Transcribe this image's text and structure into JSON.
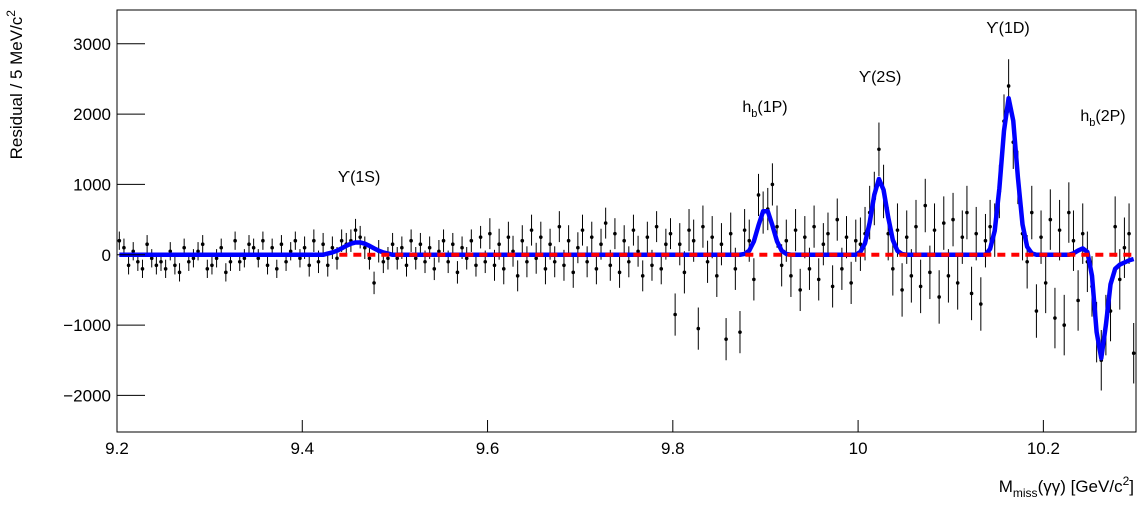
{
  "chart_data": {
    "type": "scatter",
    "x": [
      9.2025,
      9.2075,
      9.2125,
      9.2175,
      9.2225,
      9.2275,
      9.2325,
      9.2375,
      9.2425,
      9.2475,
      9.2525,
      9.2575,
      9.2625,
      9.2675,
      9.2725,
      9.2775,
      9.2825,
      9.2875,
      9.2925,
      9.2975,
      9.3025,
      9.3075,
      9.3125,
      9.3175,
      9.3225,
      9.3275,
      9.3325,
      9.3375,
      9.3425,
      9.3475,
      9.3525,
      9.3575,
      9.3625,
      9.3675,
      9.3725,
      9.3775,
      9.3825,
      9.3875,
      9.3925,
      9.3975,
      9.4025,
      9.4075,
      9.4125,
      9.4175,
      9.4225,
      9.4275,
      9.4325,
      9.4375,
      9.4425,
      9.4475,
      9.4525,
      9.4575,
      9.4625,
      9.4675,
      9.4725,
      9.4775,
      9.4825,
      9.4875,
      9.4925,
      9.4975,
      9.5025,
      9.5075,
      9.5125,
      9.5175,
      9.5225,
      9.5275,
      9.5325,
      9.5375,
      9.5425,
      9.5475,
      9.5525,
      9.5575,
      9.5625,
      9.5675,
      9.5725,
      9.5775,
      9.5825,
      9.5875,
      9.5925,
      9.5975,
      9.6025,
      9.6075,
      9.6125,
      9.6175,
      9.6225,
      9.6275,
      9.6325,
      9.6375,
      9.6425,
      9.6475,
      9.6525,
      9.6575,
      9.6625,
      9.6675,
      9.6725,
      9.6775,
      9.6825,
      9.6875,
      9.6925,
      9.6975,
      9.7025,
      9.7075,
      9.7125,
      9.7175,
      9.7225,
      9.7275,
      9.7325,
      9.7375,
      9.7425,
      9.7475,
      9.7525,
      9.7575,
      9.7625,
      9.7675,
      9.7725,
      9.7775,
      9.7825,
      9.7875,
      9.7925,
      9.7975,
      9.8025,
      9.8075,
      9.8125,
      9.8175,
      9.8225,
      9.8275,
      9.8325,
      9.8375,
      9.8425,
      9.8475,
      9.8525,
      9.8575,
      9.8625,
      9.8675,
      9.8725,
      9.8775,
      9.8825,
      9.8875,
      9.8925,
      9.8975,
      9.9025,
      9.9075,
      9.9125,
      9.9175,
      9.9225,
      9.9275,
      9.9325,
      9.9375,
      9.9425,
      9.9475,
      9.9525,
      9.9575,
      9.9625,
      9.9675,
      9.9725,
      9.9775,
      9.9825,
      9.9875,
      9.9925,
      9.9975,
      10.0025,
      10.0075,
      10.0125,
      10.0175,
      10.0225,
      10.0275,
      10.0325,
      10.0375,
      10.0425,
      10.0475,
      10.0525,
      10.0575,
      10.0625,
      10.0675,
      10.0725,
      10.0775,
      10.0825,
      10.0875,
      10.0925,
      10.0975,
      10.1025,
      10.1075,
      10.1125,
      10.1175,
      10.1225,
      10.1275,
      10.1325,
      10.1375,
      10.1425,
      10.1475,
      10.1525,
      10.1575,
      10.1625,
      10.1675,
      10.1725,
      10.1775,
      10.1825,
      10.1875,
      10.1925,
      10.1975,
      10.2025,
      10.2075,
      10.2125,
      10.2175,
      10.2225,
      10.2275,
      10.2325,
      10.2375,
      10.2425,
      10.2475,
      10.2525,
      10.2575,
      10.2625,
      10.2675,
      10.2725,
      10.2775,
      10.2825,
      10.2875,
      10.2925,
      10.2975
    ],
    "series": [
      {
        "style": "points",
        "color": "#000000",
        "values": [
          200,
          100,
          -150,
          50,
          -100,
          -200,
          150,
          -50,
          -150,
          -100,
          -200,
          50,
          -150,
          -250,
          100,
          -100,
          -50,
          50,
          150,
          -200,
          -150,
          -50,
          100,
          -250,
          -100,
          200,
          -100,
          -50,
          150,
          100,
          -50,
          200,
          -150,
          100,
          -200,
          150,
          -100,
          50,
          200,
          -50,
          100,
          -150,
          200,
          -100,
          150,
          -150,
          100,
          -50,
          200,
          150,
          200,
          350,
          250,
          100,
          -50,
          -400,
          50,
          -100,
          -50,
          150,
          -50,
          100,
          -150,
          200,
          -50,
          150,
          -100,
          100,
          -200,
          50,
          200,
          -100,
          150,
          -250,
          100,
          -50,
          200,
          -150,
          250,
          -100,
          300,
          -150,
          150,
          -200,
          250,
          50,
          -300,
          200,
          -100,
          350,
          -50,
          250,
          -200,
          150,
          -100,
          400,
          -150,
          200,
          -250,
          100,
          350,
          -100,
          250,
          -200,
          150,
          450,
          -150,
          300,
          -250,
          200,
          -100,
          350,
          50,
          -300,
          250,
          -150,
          400,
          -200,
          150,
          300,
          -850,
          150,
          -250,
          350,
          200,
          -1050,
          400,
          -100,
          250,
          -300,
          150,
          -1200,
          300,
          -200,
          -1100,
          350,
          200,
          -350,
          850,
          600,
          650,
          1000,
          400,
          -150,
          200,
          -300,
          350,
          -500,
          250,
          -200,
          400,
          -350,
          150,
          300,
          -450,
          500,
          -200,
          250,
          -400,
          200,
          150,
          300,
          600,
          800,
          1500,
          900,
          300,
          -200,
          350,
          -500,
          250,
          -300,
          400,
          -450,
          700,
          -250,
          350,
          -600,
          450,
          -300,
          500,
          -400,
          250,
          600,
          -550,
          300,
          -700,
          200,
          400,
          350,
          900,
          1900,
          2400,
          1600,
          1100,
          300,
          -100,
          600,
          -800,
          250,
          -400,
          500,
          -900,
          350,
          -1000,
          600,
          200,
          -650,
          300,
          -100,
          -450,
          -1100,
          -1500,
          -1000,
          -800,
          400,
          -350,
          100,
          300,
          -1400
        ],
        "errors": [
          130,
          130,
          130,
          130,
          130,
          130,
          130,
          130,
          130,
          130,
          130,
          130,
          130,
          130,
          130,
          130,
          130,
          130,
          130,
          130,
          130,
          130,
          130,
          130,
          130,
          130,
          130,
          130,
          130,
          130,
          130,
          130,
          130,
          130,
          130,
          130,
          130,
          130,
          130,
          130,
          160,
          160,
          160,
          160,
          160,
          160,
          160,
          160,
          160,
          160,
          160,
          160,
          160,
          160,
          160,
          160,
          160,
          160,
          160,
          160,
          160,
          160,
          160,
          160,
          160,
          160,
          160,
          160,
          160,
          160,
          160,
          160,
          160,
          160,
          160,
          160,
          160,
          160,
          160,
          160,
          220,
          220,
          220,
          220,
          220,
          220,
          220,
          220,
          220,
          220,
          220,
          220,
          220,
          220,
          220,
          220,
          220,
          220,
          220,
          220,
          220,
          220,
          220,
          220,
          220,
          220,
          220,
          220,
          220,
          220,
          220,
          220,
          220,
          220,
          220,
          220,
          220,
          220,
          220,
          220,
          300,
          300,
          300,
          300,
          300,
          300,
          300,
          300,
          300,
          300,
          300,
          300,
          300,
          300,
          300,
          300,
          300,
          300,
          300,
          300,
          300,
          300,
          300,
          300,
          300,
          300,
          300,
          300,
          300,
          300,
          300,
          300,
          300,
          300,
          300,
          300,
          300,
          300,
          300,
          300,
          380,
          380,
          380,
          380,
          380,
          380,
          380,
          380,
          380,
          380,
          380,
          380,
          380,
          380,
          380,
          380,
          380,
          380,
          380,
          380,
          380,
          380,
          380,
          380,
          380,
          380,
          380,
          380,
          380,
          380,
          380,
          380,
          380,
          380,
          380,
          380,
          380,
          380,
          380,
          380,
          430,
          430,
          430,
          430,
          430,
          430,
          430,
          430,
          430,
          430,
          430,
          430,
          430,
          430,
          430,
          430,
          430,
          430,
          430,
          430
        ]
      },
      {
        "style": "line",
        "color": "#0000ff",
        "values": [
          0,
          0,
          0,
          0,
          0,
          0,
          0,
          0,
          0,
          0,
          0,
          0,
          0,
          0,
          0,
          0,
          0,
          0,
          0,
          0,
          0,
          0,
          0,
          0,
          0,
          0,
          0,
          0,
          0,
          0,
          0,
          0,
          0,
          0,
          0,
          0,
          0,
          0,
          0,
          0,
          0,
          0,
          0,
          0,
          0,
          17,
          33,
          58,
          91,
          127,
          157,
          175,
          175,
          157,
          127,
          91,
          58,
          33,
          17,
          0,
          0,
          0,
          0,
          0,
          0,
          0,
          0,
          0,
          0,
          0,
          0,
          0,
          0,
          0,
          0,
          0,
          0,
          0,
          0,
          0,
          0,
          0,
          0,
          0,
          0,
          0,
          0,
          0,
          0,
          0,
          0,
          0,
          0,
          0,
          0,
          0,
          0,
          0,
          0,
          0,
          0,
          0,
          0,
          0,
          0,
          0,
          0,
          0,
          0,
          0,
          0,
          0,
          0,
          0,
          0,
          0,
          0,
          0,
          0,
          0,
          0,
          0,
          0,
          0,
          0,
          0,
          0,
          0,
          0,
          0,
          0,
          0,
          0,
          0,
          0,
          12,
          59,
          190,
          418,
          619,
          619,
          418,
          190,
          59,
          12,
          0,
          0,
          0,
          0,
          0,
          0,
          0,
          0,
          0,
          0,
          0,
          0,
          0,
          0,
          0,
          41,
          165,
          457,
          853,
          1078,
          922,
          534,
          209,
          55,
          10,
          0,
          0,
          0,
          0,
          0,
          0,
          0,
          0,
          0,
          0,
          0,
          0,
          0,
          0,
          0,
          0,
          0,
          0,
          84,
          341,
          943,
          1762,
          2226,
          1904,
          1102,
          430,
          114,
          20,
          0,
          0,
          0,
          0,
          0,
          0,
          0,
          0,
          20,
          60,
          90,
          40,
          -300,
          -1100,
          -1470,
          -1000,
          -420,
          -200,
          -140,
          -110,
          -80,
          -60
        ]
      },
      {
        "style": "dashed",
        "color": "#ff0000",
        "x": [
          9.44,
          10.3
        ],
        "values": [
          0,
          0
        ]
      }
    ],
    "xlim": [
      9.2,
      10.3
    ],
    "ylim": [
      -2520,
      3480
    ],
    "xticks": [
      9.2,
      9.4,
      9.6,
      9.8,
      10,
      10.2
    ],
    "yticks": [
      {
        "value": -2000,
        "label": "−2000"
      },
      {
        "value": -1000,
        "label": "−1000"
      },
      0,
      1000,
      2000,
      3000
    ],
    "x_label": {
      "main": "M",
      "sub": "miss",
      "rest": "(γγ) [GeV/c",
      "sup": "2",
      "end": "]"
    },
    "y_label": {
      "main": "Residual / 5 MeV/c",
      "sup": "2"
    },
    "annotations": [
      {
        "main": "ϒ(1S)"
      },
      {
        "main": "h",
        "sub": "b",
        "rest": "(1P)"
      },
      {
        "main": "ϒ(2S)"
      },
      {
        "main": "ϒ(1D)"
      },
      {
        "main": "h",
        "sub": "b",
        "rest": "(2P)"
      }
    ]
  }
}
